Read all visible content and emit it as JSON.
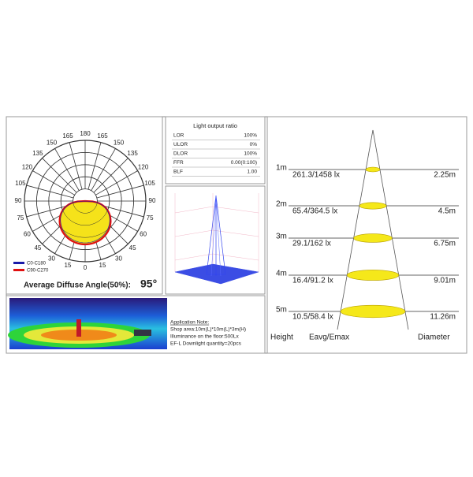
{
  "polar": {
    "angle_ticks": [
      0,
      15,
      30,
      45,
      60,
      75,
      90,
      105,
      120,
      135,
      150,
      165,
      180
    ],
    "legend": [
      "C0-C180",
      "C90-C270"
    ],
    "average_label": "Average Diffuse Angle(50%):",
    "average_value": "95°"
  },
  "output_table": {
    "title": "Light output ratio",
    "rows": [
      [
        "LOR",
        "100%"
      ],
      [
        "ULOR",
        "0%"
      ],
      [
        "DLOR",
        "100%"
      ],
      [
        "FFR",
        "0.00(0:100)"
      ],
      [
        "BLF",
        "1.00"
      ]
    ]
  },
  "application_note": [
    "Application Note:",
    "Shop area:10m(L)*10m(L)*3m(H)",
    "Illuminance on the floor:500Lx",
    "EF-L Downlight quantity=20pcs"
  ],
  "cone": {
    "rows": [
      {
        "height": "1m",
        "lux": "261.3/1458 lx",
        "diameter": "2.25m"
      },
      {
        "height": "2m",
        "lux": "65.4/364.5 lx",
        "diameter": "4.5m"
      },
      {
        "height": "3m",
        "lux": "29.1/162 lx",
        "diameter": "6.75m"
      },
      {
        "height": "4m",
        "lux": "16.4/91.2 lx",
        "diameter": "9.01m"
      },
      {
        "height": "5m",
        "lux": "10.5/58.4 lx",
        "diameter": "11.26m"
      }
    ],
    "headers": [
      "Height",
      "Eavg/Emax",
      "Diameter"
    ]
  }
}
